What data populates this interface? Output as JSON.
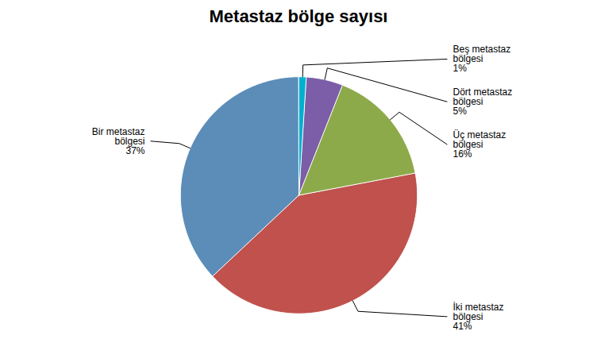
{
  "chart_data": {
    "type": "pie",
    "title": "Metastaz bölge sayısı",
    "categories": [
      "Bir metastaz bölgesi",
      "İki metastaz bölgesi",
      "Üç metastaz bölgesi",
      "Dört metastaz bölgesi",
      "Beş metastaz bölgesi"
    ],
    "values": [
      37,
      41,
      16,
      5,
      1
    ],
    "value_labels": [
      "37%",
      "41%",
      "16%",
      "5%",
      "1%"
    ],
    "colors": [
      "#5B8DB8",
      "#C0514D",
      "#8DAA4A",
      "#7B5EA7",
      "#00B0D0"
    ],
    "data_labels": true
  }
}
